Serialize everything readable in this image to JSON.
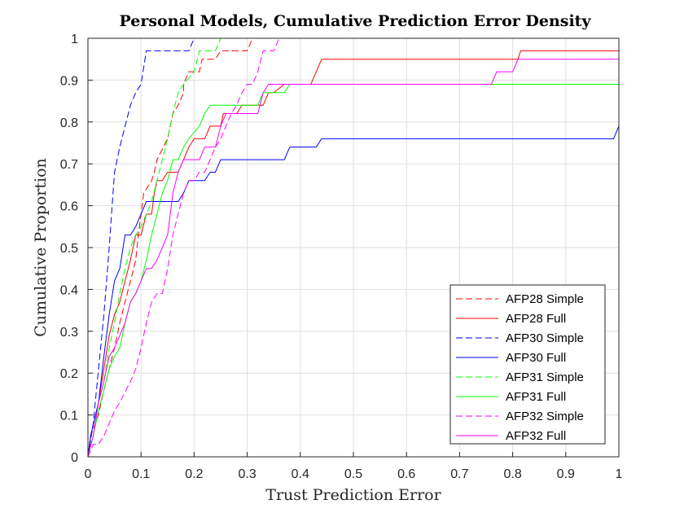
{
  "chart_data": {
    "type": "line",
    "title": "Personal Models, Cumulative Prediction Error Density",
    "xlabel": "Trust Prediction Error",
    "ylabel": "Cumulative Proportion",
    "xlim": [
      0,
      1
    ],
    "ylim": [
      0,
      1
    ],
    "xticks": [
      "0",
      "0.1",
      "0.2",
      "0.3",
      "0.4",
      "0.5",
      "0.6",
      "0.7",
      "0.8",
      "0.9",
      "1"
    ],
    "yticks": [
      "0",
      "0.1",
      "0.2",
      "0.3",
      "0.4",
      "0.5",
      "0.6",
      "0.7",
      "0.8",
      "0.9",
      "1"
    ],
    "grid": true,
    "legend_position": "bottom-right",
    "series": [
      {
        "name": "AFP28 Simple",
        "color": "#ff0000",
        "dash": "dashed",
        "points": [
          [
            0,
            0
          ],
          [
            0.005,
            0.05
          ],
          [
            0.02,
            0.1
          ],
          [
            0.03,
            0.16
          ],
          [
            0.04,
            0.21
          ],
          [
            0.05,
            0.26
          ],
          [
            0.06,
            0.32
          ],
          [
            0.07,
            0.37
          ],
          [
            0.08,
            0.42
          ],
          [
            0.09,
            0.47
          ],
          [
            0.095,
            0.53
          ],
          [
            0.1,
            0.58
          ],
          [
            0.105,
            0.63
          ],
          [
            0.12,
            0.66
          ],
          [
            0.125,
            0.68
          ],
          [
            0.13,
            0.71
          ],
          [
            0.15,
            0.76
          ],
          [
            0.155,
            0.79
          ],
          [
            0.16,
            0.82
          ],
          [
            0.17,
            0.84
          ],
          [
            0.18,
            0.87
          ],
          [
            0.18,
            0.89
          ],
          [
            0.19,
            0.92
          ],
          [
            0.21,
            0.92
          ],
          [
            0.215,
            0.95
          ],
          [
            0.24,
            0.95
          ],
          [
            0.25,
            0.97
          ],
          [
            0.3,
            0.97
          ],
          [
            0.31,
            1.0
          ],
          [
            1.0,
            1.0
          ]
        ]
      },
      {
        "name": "AFP28 Full",
        "color": "#ff0000",
        "dash": "solid",
        "points": [
          [
            0,
            0
          ],
          [
            0.005,
            0.05
          ],
          [
            0.02,
            0.13
          ],
          [
            0.03,
            0.21
          ],
          [
            0.04,
            0.29
          ],
          [
            0.05,
            0.34
          ],
          [
            0.06,
            0.37
          ],
          [
            0.07,
            0.42
          ],
          [
            0.08,
            0.47
          ],
          [
            0.09,
            0.53
          ],
          [
            0.1,
            0.53
          ],
          [
            0.11,
            0.58
          ],
          [
            0.12,
            0.58
          ],
          [
            0.125,
            0.63
          ],
          [
            0.13,
            0.66
          ],
          [
            0.14,
            0.66
          ],
          [
            0.15,
            0.68
          ],
          [
            0.17,
            0.68
          ],
          [
            0.18,
            0.71
          ],
          [
            0.19,
            0.74
          ],
          [
            0.2,
            0.76
          ],
          [
            0.22,
            0.76
          ],
          [
            0.23,
            0.79
          ],
          [
            0.25,
            0.79
          ],
          [
            0.255,
            0.82
          ],
          [
            0.28,
            0.82
          ],
          [
            0.29,
            0.84
          ],
          [
            0.33,
            0.84
          ],
          [
            0.34,
            0.87
          ],
          [
            0.35,
            0.87
          ],
          [
            0.37,
            0.89
          ],
          [
            0.42,
            0.89
          ],
          [
            0.43,
            0.92
          ],
          [
            0.44,
            0.95
          ],
          [
            0.81,
            0.95
          ],
          [
            0.815,
            0.97
          ],
          [
            1.0,
            0.97
          ]
        ]
      },
      {
        "name": "AFP30 Simple",
        "color": "#0000ff",
        "dash": "dashed",
        "points": [
          [
            0,
            0
          ],
          [
            0.01,
            0.08
          ],
          [
            0.02,
            0.21
          ],
          [
            0.03,
            0.34
          ],
          [
            0.04,
            0.5
          ],
          [
            0.05,
            0.68
          ],
          [
            0.06,
            0.74
          ],
          [
            0.07,
            0.79
          ],
          [
            0.08,
            0.84
          ],
          [
            0.09,
            0.87
          ],
          [
            0.1,
            0.89
          ],
          [
            0.11,
            0.97
          ],
          [
            0.19,
            0.97
          ],
          [
            0.2,
            1.0
          ],
          [
            1.0,
            1.0
          ]
        ]
      },
      {
        "name": "AFP30 Full",
        "color": "#0000ff",
        "dash": "solid",
        "points": [
          [
            0,
            0
          ],
          [
            0.005,
            0.05
          ],
          [
            0.02,
            0.13
          ],
          [
            0.03,
            0.24
          ],
          [
            0.04,
            0.34
          ],
          [
            0.05,
            0.42
          ],
          [
            0.06,
            0.45
          ],
          [
            0.07,
            0.53
          ],
          [
            0.08,
            0.53
          ],
          [
            0.09,
            0.55
          ],
          [
            0.1,
            0.58
          ],
          [
            0.11,
            0.61
          ],
          [
            0.17,
            0.61
          ],
          [
            0.18,
            0.63
          ],
          [
            0.19,
            0.66
          ],
          [
            0.22,
            0.66
          ],
          [
            0.23,
            0.68
          ],
          [
            0.24,
            0.68
          ],
          [
            0.25,
            0.71
          ],
          [
            0.37,
            0.71
          ],
          [
            0.38,
            0.74
          ],
          [
            0.43,
            0.74
          ],
          [
            0.44,
            0.76
          ],
          [
            0.99,
            0.76
          ],
          [
            1.0,
            0.79
          ]
        ]
      },
      {
        "name": "AFP31 Simple",
        "color": "#00ff00",
        "dash": "dashed",
        "points": [
          [
            0,
            0
          ],
          [
            0.01,
            0.05
          ],
          [
            0.02,
            0.13
          ],
          [
            0.03,
            0.18
          ],
          [
            0.04,
            0.26
          ],
          [
            0.05,
            0.32
          ],
          [
            0.06,
            0.39
          ],
          [
            0.07,
            0.45
          ],
          [
            0.08,
            0.5
          ],
          [
            0.09,
            0.53
          ],
          [
            0.1,
            0.55
          ],
          [
            0.11,
            0.58
          ],
          [
            0.12,
            0.61
          ],
          [
            0.13,
            0.66
          ],
          [
            0.14,
            0.71
          ],
          [
            0.15,
            0.76
          ],
          [
            0.16,
            0.82
          ],
          [
            0.17,
            0.87
          ],
          [
            0.18,
            0.89
          ],
          [
            0.2,
            0.92
          ],
          [
            0.21,
            0.97
          ],
          [
            0.24,
            0.97
          ],
          [
            0.25,
            1.0
          ],
          [
            1.0,
            1.0
          ]
        ]
      },
      {
        "name": "AFP31 Full",
        "color": "#00ff00",
        "dash": "solid",
        "points": [
          [
            0,
            0
          ],
          [
            0.01,
            0.05
          ],
          [
            0.02,
            0.11
          ],
          [
            0.03,
            0.16
          ],
          [
            0.04,
            0.21
          ],
          [
            0.05,
            0.24
          ],
          [
            0.06,
            0.26
          ],
          [
            0.07,
            0.32
          ],
          [
            0.08,
            0.37
          ],
          [
            0.09,
            0.39
          ],
          [
            0.1,
            0.42
          ],
          [
            0.11,
            0.47
          ],
          [
            0.12,
            0.53
          ],
          [
            0.13,
            0.58
          ],
          [
            0.14,
            0.63
          ],
          [
            0.15,
            0.66
          ],
          [
            0.16,
            0.71
          ],
          [
            0.17,
            0.71
          ],
          [
            0.18,
            0.74
          ],
          [
            0.19,
            0.76
          ],
          [
            0.21,
            0.79
          ],
          [
            0.22,
            0.82
          ],
          [
            0.23,
            0.84
          ],
          [
            0.32,
            0.84
          ],
          [
            0.33,
            0.87
          ],
          [
            0.37,
            0.87
          ],
          [
            0.38,
            0.89
          ],
          [
            1.0,
            0.89
          ]
        ]
      },
      {
        "name": "AFP32 Simple",
        "color": "#ff00ff",
        "dash": "dashed",
        "points": [
          [
            0,
            0
          ],
          [
            0.01,
            0.03
          ],
          [
            0.02,
            0.03
          ],
          [
            0.03,
            0.05
          ],
          [
            0.04,
            0.08
          ],
          [
            0.05,
            0.11
          ],
          [
            0.06,
            0.13
          ],
          [
            0.08,
            0.18
          ],
          [
            0.09,
            0.21
          ],
          [
            0.1,
            0.26
          ],
          [
            0.11,
            0.32
          ],
          [
            0.12,
            0.37
          ],
          [
            0.13,
            0.39
          ],
          [
            0.14,
            0.39
          ],
          [
            0.15,
            0.45
          ],
          [
            0.16,
            0.53
          ],
          [
            0.17,
            0.58
          ],
          [
            0.18,
            0.63
          ],
          [
            0.19,
            0.66
          ],
          [
            0.2,
            0.66
          ],
          [
            0.21,
            0.68
          ],
          [
            0.22,
            0.68
          ],
          [
            0.23,
            0.71
          ],
          [
            0.24,
            0.74
          ],
          [
            0.25,
            0.76
          ],
          [
            0.26,
            0.79
          ],
          [
            0.27,
            0.82
          ],
          [
            0.28,
            0.84
          ],
          [
            0.29,
            0.87
          ],
          [
            0.3,
            0.89
          ],
          [
            0.31,
            0.89
          ],
          [
            0.32,
            0.92
          ],
          [
            0.33,
            0.97
          ],
          [
            0.35,
            0.97
          ],
          [
            0.36,
            1.0
          ],
          [
            1.0,
            1.0
          ]
        ]
      },
      {
        "name": "AFP32 Full",
        "color": "#ff00ff",
        "dash": "solid",
        "points": [
          [
            0,
            0
          ],
          [
            0.01,
            0.05
          ],
          [
            0.02,
            0.13
          ],
          [
            0.03,
            0.18
          ],
          [
            0.04,
            0.24
          ],
          [
            0.05,
            0.26
          ],
          [
            0.06,
            0.29
          ],
          [
            0.07,
            0.32
          ],
          [
            0.08,
            0.37
          ],
          [
            0.09,
            0.39
          ],
          [
            0.1,
            0.42
          ],
          [
            0.11,
            0.45
          ],
          [
            0.12,
            0.45
          ],
          [
            0.13,
            0.47
          ],
          [
            0.14,
            0.5
          ],
          [
            0.15,
            0.53
          ],
          [
            0.16,
            0.63
          ],
          [
            0.17,
            0.68
          ],
          [
            0.18,
            0.71
          ],
          [
            0.21,
            0.71
          ],
          [
            0.22,
            0.74
          ],
          [
            0.24,
            0.74
          ],
          [
            0.25,
            0.79
          ],
          [
            0.26,
            0.82
          ],
          [
            0.32,
            0.82
          ],
          [
            0.33,
            0.87
          ],
          [
            0.34,
            0.89
          ],
          [
            0.76,
            0.89
          ],
          [
            0.77,
            0.92
          ],
          [
            0.8,
            0.92
          ],
          [
            0.81,
            0.95
          ],
          [
            1.0,
            0.95
          ]
        ]
      }
    ]
  }
}
